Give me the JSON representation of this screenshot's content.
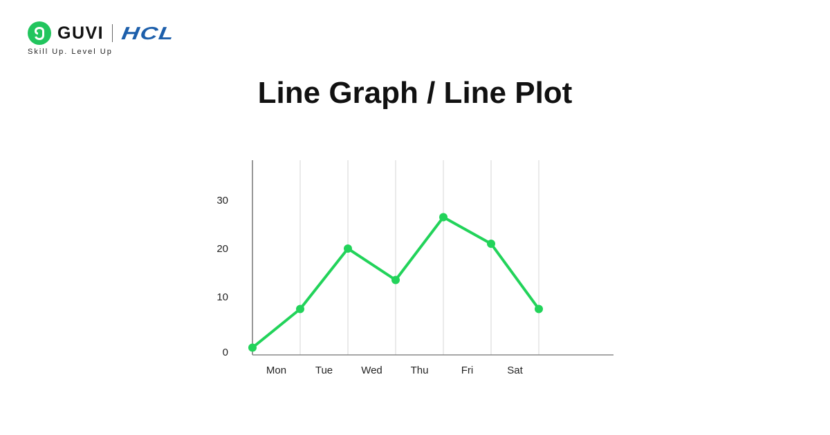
{
  "brand": {
    "name": "GUVI",
    "partner": "HCL",
    "tagline": "Skill Up. Level Up",
    "logo_icon": "guvi-logo-icon"
  },
  "chart_data": {
    "type": "line",
    "title": "Line Graph / Line Plot",
    "xlabel": "",
    "ylabel": "",
    "categories": [
      "Mon",
      "Tue",
      "Wed",
      "Thu",
      "Fri",
      "Sat"
    ],
    "x": [
      0,
      1,
      2,
      3,
      4,
      5,
      6
    ],
    "series": [
      {
        "values": [
          0.5,
          8.5,
          21,
          14.5,
          27.5,
          22,
          8.5
        ],
        "color": "#22d35a"
      }
    ],
    "yticks": [
      0,
      10,
      20,
      30
    ],
    "ylim": [
      0,
      40
    ],
    "grid": "vertical",
    "legend": "none"
  }
}
